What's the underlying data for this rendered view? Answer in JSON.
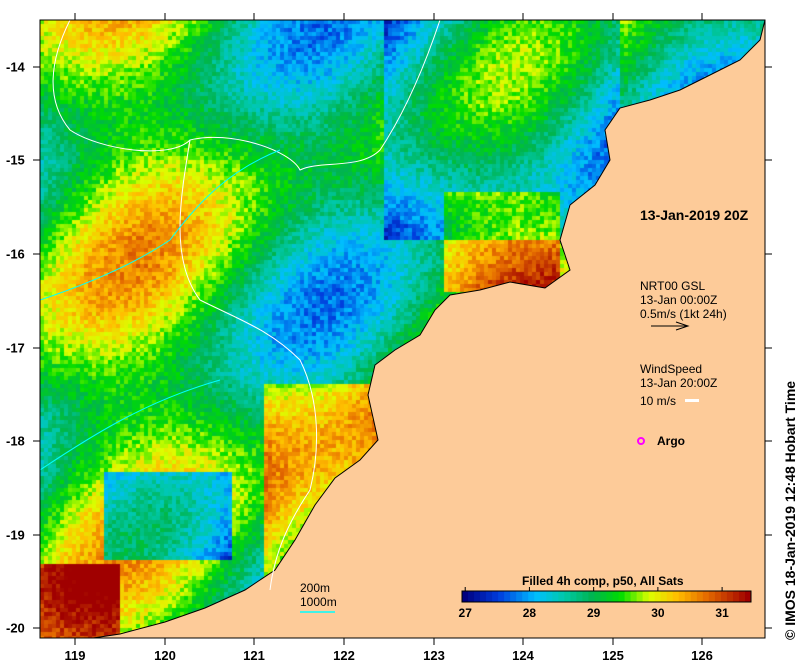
{
  "title": "13-Jan-2019 20Z",
  "current_legend": {
    "source": "NRT00 GSL",
    "time": "13-Jan 00:00Z",
    "scale": "0.5m/s (1kt 24h)"
  },
  "wind_legend": {
    "label": "WindSpeed",
    "time": "13-Jan 20:00Z",
    "scale": "10 m/s"
  },
  "argo_label": "Argo",
  "isobaths": {
    "a": "200m",
    "b": "1000m"
  },
  "colorbar": {
    "title": "Filled 4h comp, p50, All Sats",
    "ticks": [
      "27",
      "28",
      "29",
      "30",
      "31"
    ],
    "min": 26.95,
    "max": 31.45
  },
  "x_ticks": [
    "119",
    "120",
    "121",
    "122",
    "123",
    "124",
    "125",
    "126"
  ],
  "y_ticks": [
    "-14",
    "-15",
    "-16",
    "-17",
    "-18",
    "-19",
    "-20"
  ],
  "credit": "© IMOS 18-Jan-2019 12:48 Hobart Time",
  "colors": {
    "land": "#fdcb99",
    "isobath_200": "#ffffff",
    "isobath_1000": "#00ffff",
    "argo": "#ff00ff"
  }
}
